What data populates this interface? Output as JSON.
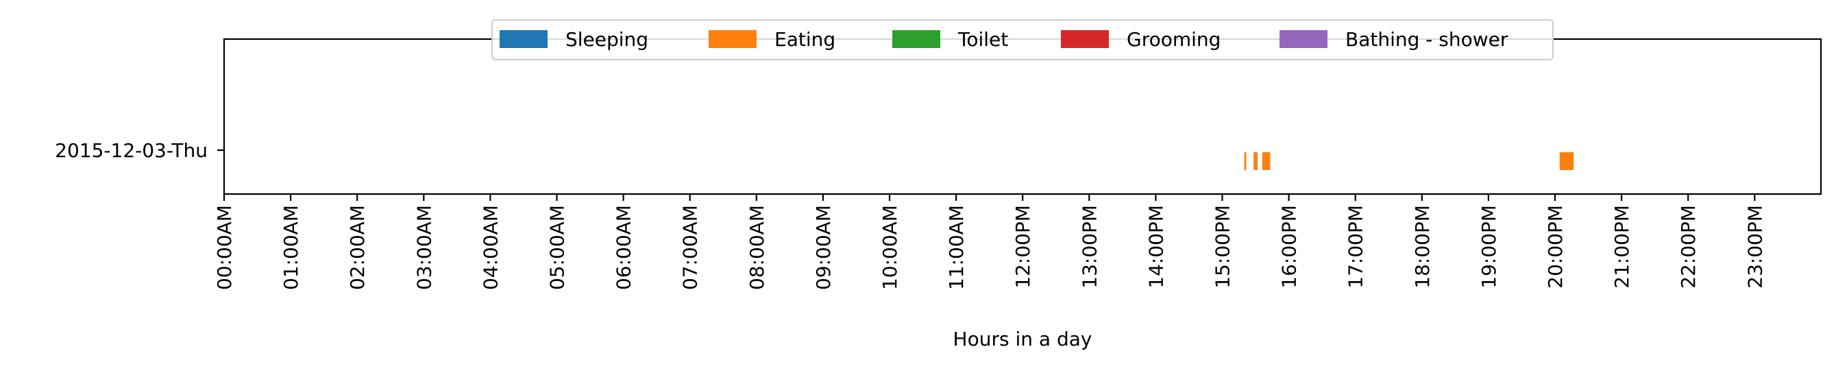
{
  "chart_data": {
    "type": "bar",
    "orientation": "horizontal-timeline",
    "title": "",
    "xlabel": "Hours in a day",
    "ylabel": "",
    "xlim": [
      0,
      24
    ],
    "x_tick_labels": [
      "00:00AM",
      "01:00AM",
      "02:00AM",
      "03:00AM",
      "04:00AM",
      "05:00AM",
      "06:00AM",
      "07:00AM",
      "08:00AM",
      "09:00AM",
      "10:00AM",
      "11:00AM",
      "12:00PM",
      "13:00PM",
      "14:00PM",
      "15:00PM",
      "16:00PM",
      "17:00PM",
      "18:00PM",
      "19:00PM",
      "20:00PM",
      "21:00PM",
      "22:00PM",
      "23:00PM"
    ],
    "categories": [
      "2015-12-03-Thu"
    ],
    "grid": false,
    "legend_position": "top-center",
    "legend": [
      {
        "name": "Sleeping",
        "color": "#1f77b4"
      },
      {
        "name": "Eating",
        "color": "#ff7f0e"
      },
      {
        "name": "Toilet",
        "color": "#2ca02c"
      },
      {
        "name": "Grooming",
        "color": "#d62728"
      },
      {
        "name": "Bathing - shower",
        "color": "#9467bd"
      }
    ],
    "series": [
      {
        "name": "Eating",
        "color": "#ff7f0e",
        "category": "2015-12-03-Thu",
        "intervals": [
          [
            15.33,
            15.36
          ],
          [
            15.47,
            15.53
          ],
          [
            15.6,
            15.72
          ],
          [
            20.07,
            20.28
          ]
        ]
      }
    ]
  }
}
